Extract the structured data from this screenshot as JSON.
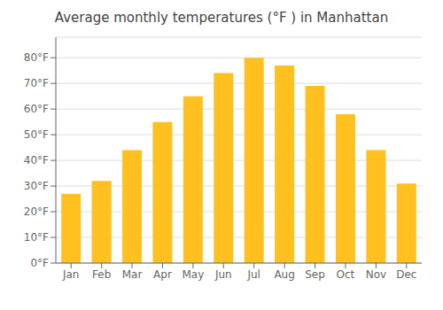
{
  "chart_data": {
    "type": "bar",
    "title": "Average monthly temperatures (°F ) in Manhattan",
    "categories": [
      "Jan",
      "Feb",
      "Mar",
      "Apr",
      "May",
      "Jun",
      "Jul",
      "Aug",
      "Sep",
      "Oct",
      "Nov",
      "Dec"
    ],
    "values": [
      27,
      32,
      44,
      55,
      65,
      74,
      80,
      77,
      69,
      58,
      44,
      31
    ],
    "color": "#FFC020",
    "ylim": [
      0,
      88
    ],
    "yticks": [
      {
        "value": 0,
        "label": "0°F"
      },
      {
        "value": 10,
        "label": "10°F"
      },
      {
        "value": 20,
        "label": "20°F"
      },
      {
        "value": 30,
        "label": "30°F"
      },
      {
        "value": 40,
        "label": "40°F"
      },
      {
        "value": 50,
        "label": "50°F"
      },
      {
        "value": 60,
        "label": "60°F"
      },
      {
        "value": 70,
        "label": "70°F"
      },
      {
        "value": 80,
        "label": "80°F"
      }
    ],
    "grid": true
  }
}
